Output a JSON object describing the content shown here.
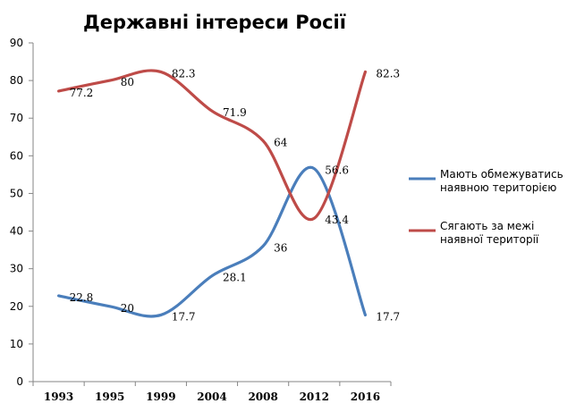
{
  "chart_data": {
    "type": "line",
    "title": "Державні інтереси Росії",
    "xlabel": "",
    "ylabel": "",
    "categories": [
      "1993",
      "1995",
      "1999",
      "2004",
      "2008",
      "2012",
      "2016"
    ],
    "y_ticks": [
      0,
      10,
      20,
      30,
      40,
      50,
      60,
      70,
      80,
      90
    ],
    "ylim": [
      0,
      90
    ],
    "grid": false,
    "legend_position": "right",
    "series": [
      {
        "name": "Мають обмежуватись наявною територією",
        "legend_lines": [
          "Мають обмежуватись",
          "наявною територією"
        ],
        "color": "#4a7ebb",
        "values": [
          22.8,
          20,
          17.7,
          28.1,
          36,
          56.6,
          17.7
        ],
        "labels": [
          "22.8",
          "20",
          "17.7",
          "28.1",
          "36",
          "56.6",
          "17.7"
        ]
      },
      {
        "name": "Сягають за межі наявної території",
        "legend_lines": [
          "Сягають за межі",
          "наявної території"
        ],
        "color": "#be4b48",
        "values": [
          77.2,
          80,
          82.3,
          71.9,
          64,
          43.4,
          82.3
        ],
        "labels": [
          "77.2",
          "80",
          "82.3",
          "71.9",
          "64",
          "43.4",
          "82.3"
        ]
      }
    ]
  }
}
